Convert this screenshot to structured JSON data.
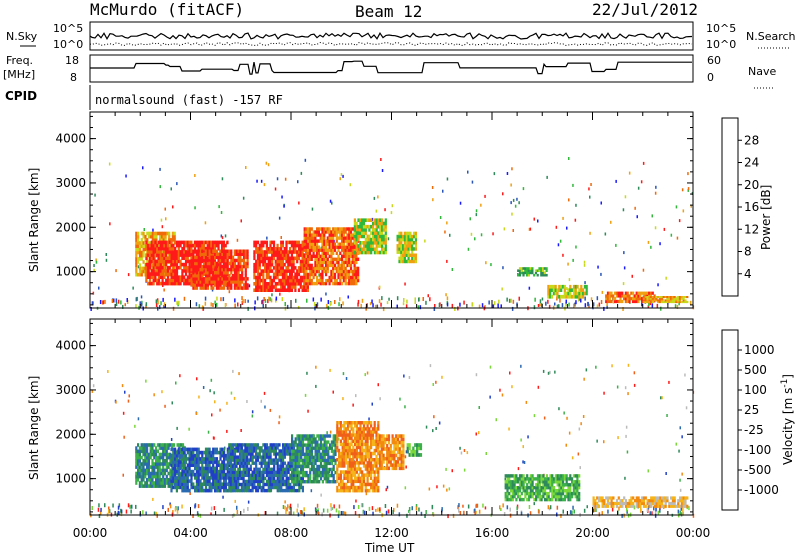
{
  "header": {
    "station": "McMurdo (fitACF)",
    "beam": "Beam 12",
    "date": "22/Jul/2012"
  },
  "noise_panel": {
    "left_label": "N.Sky",
    "right_label": "N.Search",
    "left_ticks": [
      "10^5",
      "10^0"
    ],
    "right_ticks": [
      "10^5",
      "10^0"
    ]
  },
  "freq_panel": {
    "left_label_1": "Freq.",
    "left_label_2": "[MHz]",
    "right_label": "Nave",
    "left_ticks": [
      "18",
      "8"
    ],
    "right_ticks": [
      "60",
      "0"
    ]
  },
  "cpid": {
    "label": "CPID",
    "program": "normalsound (fast) -157 RF"
  },
  "chart_data": [
    {
      "type": "heatmap",
      "name": "power",
      "ylabel": "Slant Range [km]",
      "xlabel": "",
      "yticks": [
        "1000",
        "2000",
        "3000",
        "4000"
      ],
      "ylim": [
        180,
        4600
      ],
      "xlim": [
        0,
        24
      ],
      "colorbar": {
        "label": "Power [dB]",
        "ticks": [
          "4",
          "8",
          "12",
          "16",
          "20",
          "24",
          "28"
        ],
        "colors": [
          "#1a1aff",
          "#2a55b8",
          "#2d8a5a",
          "#2fb83a",
          "#c7d91a",
          "#f0a010",
          "#f06a0a",
          "#ff1a1a"
        ]
      },
      "regions": [
        {
          "t0": 1.8,
          "t1": 3.4,
          "r0": 900,
          "r1": 1900,
          "v": 5
        },
        {
          "t0": 2.2,
          "t1": 5.5,
          "r0": 700,
          "r1": 1700,
          "v": 7
        },
        {
          "t0": 4.0,
          "t1": 6.3,
          "r0": 600,
          "r1": 1500,
          "v": 7
        },
        {
          "t0": 6.5,
          "t1": 8.7,
          "r0": 550,
          "r1": 1700,
          "v": 7
        },
        {
          "t0": 8.5,
          "t1": 10.7,
          "r0": 700,
          "r1": 2000,
          "v": 6
        },
        {
          "t0": 10.5,
          "t1": 11.8,
          "r0": 1400,
          "r1": 2200,
          "v": 4
        },
        {
          "t0": 12.2,
          "t1": 13.0,
          "r0": 1200,
          "r1": 1900,
          "v": 4
        },
        {
          "t0": 17.0,
          "t1": 18.2,
          "r0": 900,
          "r1": 1100,
          "v": 3
        },
        {
          "t0": 18.2,
          "t1": 19.8,
          "r0": 400,
          "r1": 700,
          "v": 4
        },
        {
          "t0": 20.5,
          "t1": 22.5,
          "r0": 300,
          "r1": 550,
          "v": 6
        },
        {
          "t0": 22.0,
          "t1": 23.8,
          "r0": 300,
          "r1": 450,
          "v": 5
        }
      ]
    },
    {
      "type": "heatmap",
      "name": "velocity",
      "ylabel": "Slant Range [km]",
      "xlabel": "Time UT",
      "yticks": [
        "1000",
        "2000",
        "3000",
        "4000"
      ],
      "xticks": [
        "00:00",
        "04:00",
        "08:00",
        "12:00",
        "16:00",
        "20:00",
        "00:00"
      ],
      "ylim": [
        180,
        4600
      ],
      "xlim": [
        0,
        24
      ],
      "colorbar": {
        "label": "Velocity [m s^-1]",
        "ticks": [
          "1000",
          "500",
          "100",
          "25",
          "-25",
          "-100",
          "-500",
          "-1000"
        ],
        "colors": [
          "#2040c8",
          "#2a6ab0",
          "#2e8a5a",
          "#3cb04a",
          "#7ad83a",
          "#bbbbbb",
          "#f5b41a",
          "#f28a10",
          "#f0601a",
          "#ff1a1a"
        ]
      },
      "regions": [
        {
          "t0": 1.8,
          "t1": 3.8,
          "r0": 800,
          "r1": 1800,
          "v": 2
        },
        {
          "t0": 3.2,
          "t1": 5.8,
          "r0": 700,
          "r1": 1700,
          "v": 1
        },
        {
          "t0": 5.5,
          "t1": 8.5,
          "r0": 700,
          "r1": 1800,
          "v": 1
        },
        {
          "t0": 8.0,
          "t1": 9.8,
          "r0": 900,
          "r1": 2000,
          "v": 2
        },
        {
          "t0": 9.8,
          "t1": 11.5,
          "r0": 700,
          "r1": 2300,
          "v": 7
        },
        {
          "t0": 11.5,
          "t1": 12.5,
          "r0": 1200,
          "r1": 2000,
          "v": 7
        },
        {
          "t0": 12.6,
          "t1": 13.2,
          "r0": 1500,
          "r1": 1800,
          "v": 3
        },
        {
          "t0": 16.5,
          "t1": 19.5,
          "r0": 500,
          "r1": 1100,
          "v": 3
        },
        {
          "t0": 20.0,
          "t1": 23.8,
          "r0": 350,
          "r1": 600,
          "v": 6
        }
      ]
    }
  ],
  "colors": {
    "axis": "#000000",
    "background": "#ffffff"
  }
}
